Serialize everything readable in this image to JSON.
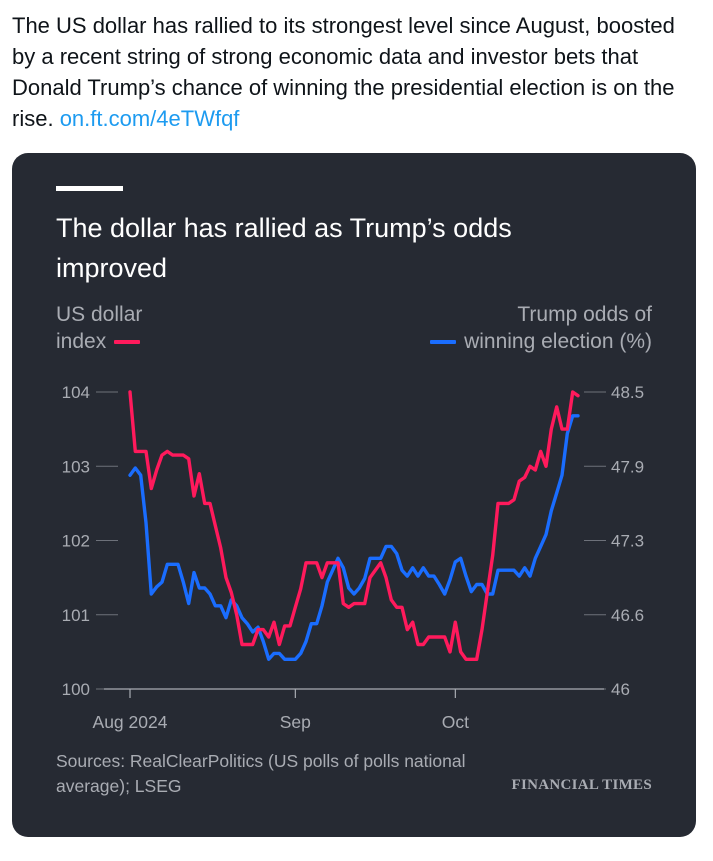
{
  "tweet": {
    "text": "The US dollar has rallied to its strongest level since August, boosted by a recent string of strong economic data and investor bets that Donald Trump’s chance of winning the presidential election is on the rise.",
    "link": "on.ft.com/4eTWfqf"
  },
  "colors": {
    "dxy": "#ff1a5c",
    "odds": "#1a6dff",
    "card_bg": "#262a33"
  },
  "chart_data": {
    "type": "line",
    "title": "The dollar has rallied as Trump’s odds improved",
    "left_axis": {
      "label_line1": "US dollar",
      "label_line2": "index",
      "range": [
        100,
        104
      ],
      "ticks": [
        "104",
        "103",
        "102",
        "101",
        "100"
      ]
    },
    "right_axis": {
      "label_line1": "Trump odds of",
      "label_line2": "winning election (%)",
      "ticks": [
        {
          "label": "48.5",
          "pos": 104
        },
        {
          "label": "47.9",
          "pos": 103
        },
        {
          "label": "47.3",
          "pos": 102
        },
        {
          "label": "46.6",
          "pos": 101
        },
        {
          "label": "46",
          "pos": 100
        }
      ]
    },
    "x_ticks": [
      {
        "label": "Aug 2024",
        "x": "2024-08-01"
      },
      {
        "label": "Sep",
        "x": "2024-09-01"
      },
      {
        "label": "Oct",
        "x": "2024-10-01"
      }
    ],
    "x_range": [
      "2024-08-01",
      "2024-10-24"
    ],
    "grid": false,
    "series": [
      {
        "name": "US dollar index",
        "axis": "left",
        "values": [
          {
            "x": "2024-08-01",
            "y": 104.0
          },
          {
            "x": "2024-08-02",
            "y": 103.2
          },
          {
            "x": "2024-08-03",
            "y": 103.2
          },
          {
            "x": "2024-08-04",
            "y": 103.2
          },
          {
            "x": "2024-08-05",
            "y": 102.7
          },
          {
            "x": "2024-08-06",
            "y": 102.95
          },
          {
            "x": "2024-08-07",
            "y": 103.15
          },
          {
            "x": "2024-08-08",
            "y": 103.2
          },
          {
            "x": "2024-08-09",
            "y": 103.15
          },
          {
            "x": "2024-08-10",
            "y": 103.15
          },
          {
            "x": "2024-08-11",
            "y": 103.15
          },
          {
            "x": "2024-08-12",
            "y": 103.1
          },
          {
            "x": "2024-08-13",
            "y": 102.6
          },
          {
            "x": "2024-08-14",
            "y": 102.9
          },
          {
            "x": "2024-08-15",
            "y": 102.5
          },
          {
            "x": "2024-08-16",
            "y": 102.5
          },
          {
            "x": "2024-08-17",
            "y": 102.2
          },
          {
            "x": "2024-08-18",
            "y": 101.9
          },
          {
            "x": "2024-08-19",
            "y": 101.5
          },
          {
            "x": "2024-08-20",
            "y": 101.3
          },
          {
            "x": "2024-08-21",
            "y": 101.0
          },
          {
            "x": "2024-08-22",
            "y": 100.6
          },
          {
            "x": "2024-08-23",
            "y": 100.6
          },
          {
            "x": "2024-08-24",
            "y": 100.6
          },
          {
            "x": "2024-08-25",
            "y": 100.8
          },
          {
            "x": "2024-08-26",
            "y": 100.8
          },
          {
            "x": "2024-08-27",
            "y": 100.7
          },
          {
            "x": "2024-08-28",
            "y": 100.9
          },
          {
            "x": "2024-08-29",
            "y": 100.6
          },
          {
            "x": "2024-08-30",
            "y": 100.85
          },
          {
            "x": "2024-08-31",
            "y": 100.85
          },
          {
            "x": "2024-09-01",
            "y": 101.1
          },
          {
            "x": "2024-09-02",
            "y": 101.35
          },
          {
            "x": "2024-09-03",
            "y": 101.7
          },
          {
            "x": "2024-09-04",
            "y": 101.7
          },
          {
            "x": "2024-09-05",
            "y": 101.7
          },
          {
            "x": "2024-09-06",
            "y": 101.5
          },
          {
            "x": "2024-09-07",
            "y": 101.7
          },
          {
            "x": "2024-09-08",
            "y": 101.7
          },
          {
            "x": "2024-09-09",
            "y": 101.7
          },
          {
            "x": "2024-09-10",
            "y": 101.15
          },
          {
            "x": "2024-09-11",
            "y": 101.1
          },
          {
            "x": "2024-09-12",
            "y": 101.15
          },
          {
            "x": "2024-09-13",
            "y": 101.15
          },
          {
            "x": "2024-09-14",
            "y": 101.15
          },
          {
            "x": "2024-09-15",
            "y": 101.5
          },
          {
            "x": "2024-09-16",
            "y": 101.6
          },
          {
            "x": "2024-09-17",
            "y": 101.7
          },
          {
            "x": "2024-09-18",
            "y": 101.5
          },
          {
            "x": "2024-09-19",
            "y": 101.2
          },
          {
            "x": "2024-09-20",
            "y": 101.1
          },
          {
            "x": "2024-09-21",
            "y": 101.1
          },
          {
            "x": "2024-09-22",
            "y": 100.8
          },
          {
            "x": "2024-09-23",
            "y": 100.9
          },
          {
            "x": "2024-09-24",
            "y": 100.6
          },
          {
            "x": "2024-09-25",
            "y": 100.6
          },
          {
            "x": "2024-09-26",
            "y": 100.7
          },
          {
            "x": "2024-09-27",
            "y": 100.7
          },
          {
            "x": "2024-09-28",
            "y": 100.7
          },
          {
            "x": "2024-09-29",
            "y": 100.7
          },
          {
            "x": "2024-09-30",
            "y": 100.5
          },
          {
            "x": "2024-10-01",
            "y": 100.9
          },
          {
            "x": "2024-10-02",
            "y": 100.5
          },
          {
            "x": "2024-10-03",
            "y": 100.4
          },
          {
            "x": "2024-10-04",
            "y": 100.4
          },
          {
            "x": "2024-10-05",
            "y": 100.4
          },
          {
            "x": "2024-10-06",
            "y": 100.8
          },
          {
            "x": "2024-10-07",
            "y": 101.3
          },
          {
            "x": "2024-10-08",
            "y": 101.8
          },
          {
            "x": "2024-10-09",
            "y": 102.5
          },
          {
            "x": "2024-10-10",
            "y": 102.5
          },
          {
            "x": "2024-10-11",
            "y": 102.5
          },
          {
            "x": "2024-10-12",
            "y": 102.55
          },
          {
            "x": "2024-10-13",
            "y": 102.8
          },
          {
            "x": "2024-10-14",
            "y": 102.85
          },
          {
            "x": "2024-10-15",
            "y": 103.0
          },
          {
            "x": "2024-10-16",
            "y": 102.95
          },
          {
            "x": "2024-10-17",
            "y": 103.2
          },
          {
            "x": "2024-10-18",
            "y": 103.0
          },
          {
            "x": "2024-10-19",
            "y": 103.5
          },
          {
            "x": "2024-10-20",
            "y": 103.8
          },
          {
            "x": "2024-10-21",
            "y": 103.5
          },
          {
            "x": "2024-10-22",
            "y": 103.5
          },
          {
            "x": "2024-10-23",
            "y": 104.0
          },
          {
            "x": "2024-10-24",
            "y": 103.95
          }
        ]
      },
      {
        "name": "Trump odds of winning election (%)",
        "axis": "right",
        "values": [
          {
            "x": "2024-08-01",
            "y": 47.8
          },
          {
            "x": "2024-08-02",
            "y": 47.86
          },
          {
            "x": "2024-08-03",
            "y": 47.8
          },
          {
            "x": "2024-08-04",
            "y": 47.4
          },
          {
            "x": "2024-08-05",
            "y": 46.8
          },
          {
            "x": "2024-08-06",
            "y": 46.86
          },
          {
            "x": "2024-08-07",
            "y": 46.9
          },
          {
            "x": "2024-08-08",
            "y": 47.05
          },
          {
            "x": "2024-08-09",
            "y": 47.05
          },
          {
            "x": "2024-08-10",
            "y": 47.05
          },
          {
            "x": "2024-08-11",
            "y": 46.9
          },
          {
            "x": "2024-08-12",
            "y": 46.72
          },
          {
            "x": "2024-08-13",
            "y": 46.98
          },
          {
            "x": "2024-08-14",
            "y": 46.85
          },
          {
            "x": "2024-08-15",
            "y": 46.85
          },
          {
            "x": "2024-08-16",
            "y": 46.8
          },
          {
            "x": "2024-08-17",
            "y": 46.7
          },
          {
            "x": "2024-08-18",
            "y": 46.7
          },
          {
            "x": "2024-08-19",
            "y": 46.6
          },
          {
            "x": "2024-08-20",
            "y": 46.75
          },
          {
            "x": "2024-08-21",
            "y": 46.7
          },
          {
            "x": "2024-08-22",
            "y": 46.6
          },
          {
            "x": "2024-08-23",
            "y": 46.55
          },
          {
            "x": "2024-08-24",
            "y": 46.48
          },
          {
            "x": "2024-08-25",
            "y": 46.52
          },
          {
            "x": "2024-08-26",
            "y": 46.4
          },
          {
            "x": "2024-08-27",
            "y": 46.25
          },
          {
            "x": "2024-08-28",
            "y": 46.3
          },
          {
            "x": "2024-08-29",
            "y": 46.3
          },
          {
            "x": "2024-08-30",
            "y": 46.25
          },
          {
            "x": "2024-08-31",
            "y": 46.25
          },
          {
            "x": "2024-09-01",
            "y": 46.25
          },
          {
            "x": "2024-09-02",
            "y": 46.3
          },
          {
            "x": "2024-09-03",
            "y": 46.4
          },
          {
            "x": "2024-09-04",
            "y": 46.55
          },
          {
            "x": "2024-09-05",
            "y": 46.55
          },
          {
            "x": "2024-09-06",
            "y": 46.7
          },
          {
            "x": "2024-09-07",
            "y": 46.9
          },
          {
            "x": "2024-09-08",
            "y": 47.0
          },
          {
            "x": "2024-09-09",
            "y": 47.1
          },
          {
            "x": "2024-09-10",
            "y": 47.02
          },
          {
            "x": "2024-09-11",
            "y": 46.85
          },
          {
            "x": "2024-09-12",
            "y": 46.8
          },
          {
            "x": "2024-09-13",
            "y": 46.85
          },
          {
            "x": "2024-09-14",
            "y": 46.93
          },
          {
            "x": "2024-09-15",
            "y": 47.1
          },
          {
            "x": "2024-09-16",
            "y": 47.1
          },
          {
            "x": "2024-09-17",
            "y": 47.1
          },
          {
            "x": "2024-09-18",
            "y": 47.2
          },
          {
            "x": "2024-09-19",
            "y": 47.2
          },
          {
            "x": "2024-09-20",
            "y": 47.14
          },
          {
            "x": "2024-09-21",
            "y": 47.0
          },
          {
            "x": "2024-09-22",
            "y": 46.95
          },
          {
            "x": "2024-09-23",
            "y": 47.02
          },
          {
            "x": "2024-09-24",
            "y": 46.95
          },
          {
            "x": "2024-09-25",
            "y": 47.02
          },
          {
            "x": "2024-09-26",
            "y": 46.95
          },
          {
            "x": "2024-09-27",
            "y": 46.95
          },
          {
            "x": "2024-09-28",
            "y": 46.88
          },
          {
            "x": "2024-09-29",
            "y": 46.8
          },
          {
            "x": "2024-09-30",
            "y": 46.92
          },
          {
            "x": "2024-10-01",
            "y": 47.07
          },
          {
            "x": "2024-10-02",
            "y": 47.1
          },
          {
            "x": "2024-10-03",
            "y": 46.95
          },
          {
            "x": "2024-10-04",
            "y": 46.82
          },
          {
            "x": "2024-10-05",
            "y": 46.88
          },
          {
            "x": "2024-10-06",
            "y": 46.88
          },
          {
            "x": "2024-10-07",
            "y": 46.8
          },
          {
            "x": "2024-10-08",
            "y": 46.8
          },
          {
            "x": "2024-10-09",
            "y": 47.0
          },
          {
            "x": "2024-10-10",
            "y": 47.0
          },
          {
            "x": "2024-10-11",
            "y": 47.0
          },
          {
            "x": "2024-10-12",
            "y": 47.0
          },
          {
            "x": "2024-10-13",
            "y": 46.95
          },
          {
            "x": "2024-10-14",
            "y": 47.02
          },
          {
            "x": "2024-10-15",
            "y": 46.95
          },
          {
            "x": "2024-10-16",
            "y": 47.1
          },
          {
            "x": "2024-10-17",
            "y": 47.2
          },
          {
            "x": "2024-10-18",
            "y": 47.3
          },
          {
            "x": "2024-10-19",
            "y": 47.5
          },
          {
            "x": "2024-10-20",
            "y": 47.65
          },
          {
            "x": "2024-10-21",
            "y": 47.8
          },
          {
            "x": "2024-10-22",
            "y": 48.15
          },
          {
            "x": "2024-10-23",
            "y": 48.3
          },
          {
            "x": "2024-10-24",
            "y": 48.3
          }
        ]
      }
    ],
    "legend_placement": "top, above axes"
  },
  "source": "Sources: RealClearPolitics (US polls of polls national average); LSEG",
  "brand": "FINANCIAL TIMES"
}
